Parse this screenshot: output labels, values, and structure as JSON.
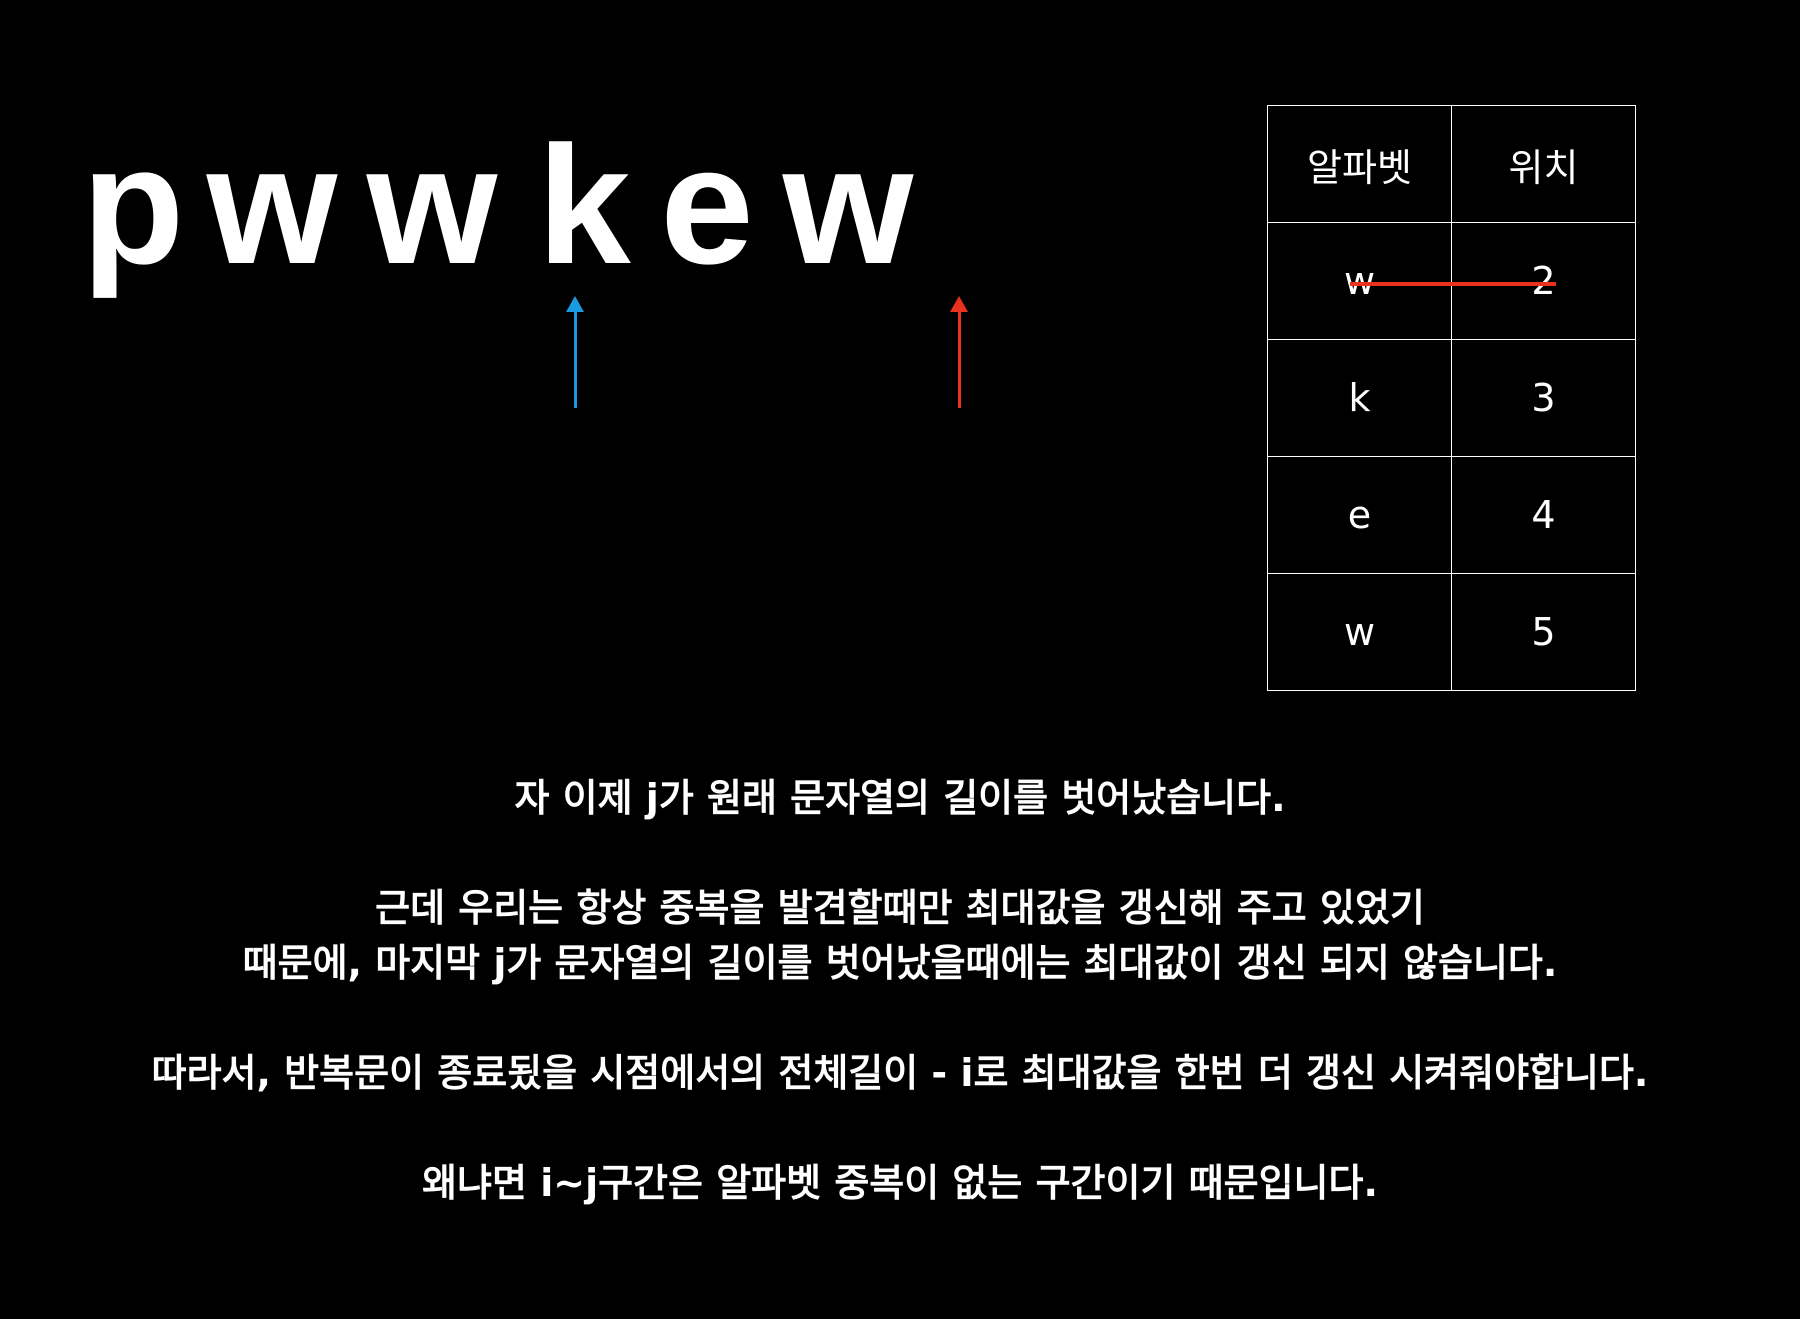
{
  "colors": {
    "background": "#000000",
    "text": "#ffffff",
    "pointer_i": "#1a9be0",
    "pointer_j": "#e8321e",
    "strike": "#e8321e"
  },
  "string": {
    "letters": [
      "p",
      "w",
      "w",
      "k",
      "e",
      "w"
    ]
  },
  "table": {
    "headers": [
      "알파벳",
      "위치"
    ],
    "rows": [
      {
        "alphabet": "w",
        "position": "2",
        "struck": true
      },
      {
        "alphabet": "k",
        "position": "3",
        "struck": false
      },
      {
        "alphabet": "e",
        "position": "4",
        "struck": false
      },
      {
        "alphabet": "w",
        "position": "5",
        "struck": false
      }
    ]
  },
  "text": {
    "p1": "자 이제 j가 원래 문자열의 길이를 벗어났습니다.",
    "p2_line1": "근데 우리는 항상 중복을 발견할때만 최대값을 갱신해 주고 있었기",
    "p2_line2": "때문에, 마지막 j가 문자열의 길이를 벗어났을때에는 최대값이 갱신 되지 않습니다.",
    "p3": "따라서, 반복문이 종료됬을 시점에서의 전체길이 - i로 최대값을 한번 더 갱신 시켜줘야합니다.",
    "p4": "왜냐면 i~j구간은 알파벳 중복이 없는 구간이기 때문입니다."
  }
}
